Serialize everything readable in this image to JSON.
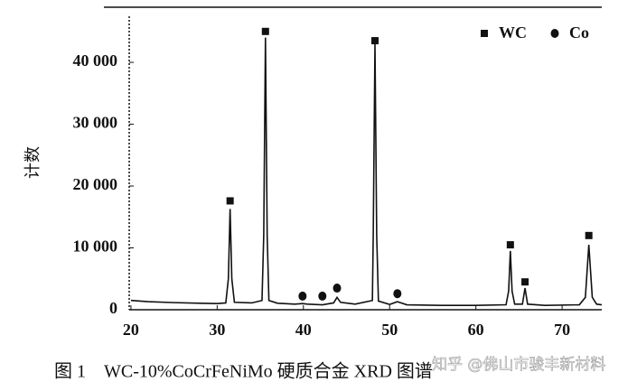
{
  "chart_data": {
    "type": "line",
    "ylabel": "计数",
    "caption": "图 1　WC-10%CoCrFeNiMo 硬质合金 XRD 图谱",
    "watermark": "知乎 @佛山市骏丰新材料",
    "color": "#111111",
    "x": [
      20,
      22,
      25,
      28,
      30,
      31.0,
      31.3,
      31.5,
      31.7,
      32.0,
      34,
      35.2,
      35.4,
      35.6,
      35.8,
      36.0,
      37,
      39,
      39.9,
      40.5,
      42.2,
      43.5,
      43.9,
      44.3,
      46,
      48.0,
      48.1,
      48.3,
      48.5,
      48.7,
      50,
      50.9,
      52,
      56,
      60,
      63.5,
      63.8,
      64.0,
      64.2,
      64.5,
      65.4,
      65.7,
      66.0,
      68,
      72,
      72.7,
      73.1,
      73.5,
      74,
      74.6
    ],
    "values": [
      1500,
      1300,
      1150,
      1050,
      1000,
      1100,
      5000,
      16300,
      5000,
      1200,
      1100,
      1500,
      12000,
      44000,
      12000,
      1500,
      1050,
      900,
      1000,
      900,
      800,
      1100,
      2000,
      1200,
      900,
      1500,
      12000,
      43000,
      12000,
      1400,
      850,
      1300,
      800,
      700,
      700,
      800,
      3000,
      9500,
      3000,
      900,
      900,
      3500,
      900,
      700,
      800,
      2000,
      10500,
      2000,
      900,
      800
    ],
    "markers": [
      {
        "name": "WC",
        "shape": "square",
        "color": "#111111",
        "x": [
          31.5,
          35.6,
          48.3,
          64.0,
          65.7,
          73.1
        ],
        "values": [
          17600,
          45000,
          43500,
          10500,
          4500,
          12000
        ]
      },
      {
        "name": "Co",
        "shape": "circle",
        "color": "#111111",
        "x": [
          39.9,
          42.2,
          43.9,
          50.9
        ],
        "values": [
          2200,
          2200,
          3500,
          2600
        ]
      }
    ],
    "legend": "upper right",
    "xlim": [
      19.8,
      74.6
    ],
    "xticks": [
      20,
      30,
      40,
      50,
      60,
      70
    ],
    "ylim": [
      0,
      49000
    ],
    "yticks": [
      0,
      {
        "value": 10000,
        "label": "10 000"
      },
      {
        "value": 20000,
        "label": "20 000"
      },
      {
        "value": 30000,
        "label": "30 000"
      },
      {
        "value": 40000,
        "label": "40 000"
      }
    ]
  }
}
